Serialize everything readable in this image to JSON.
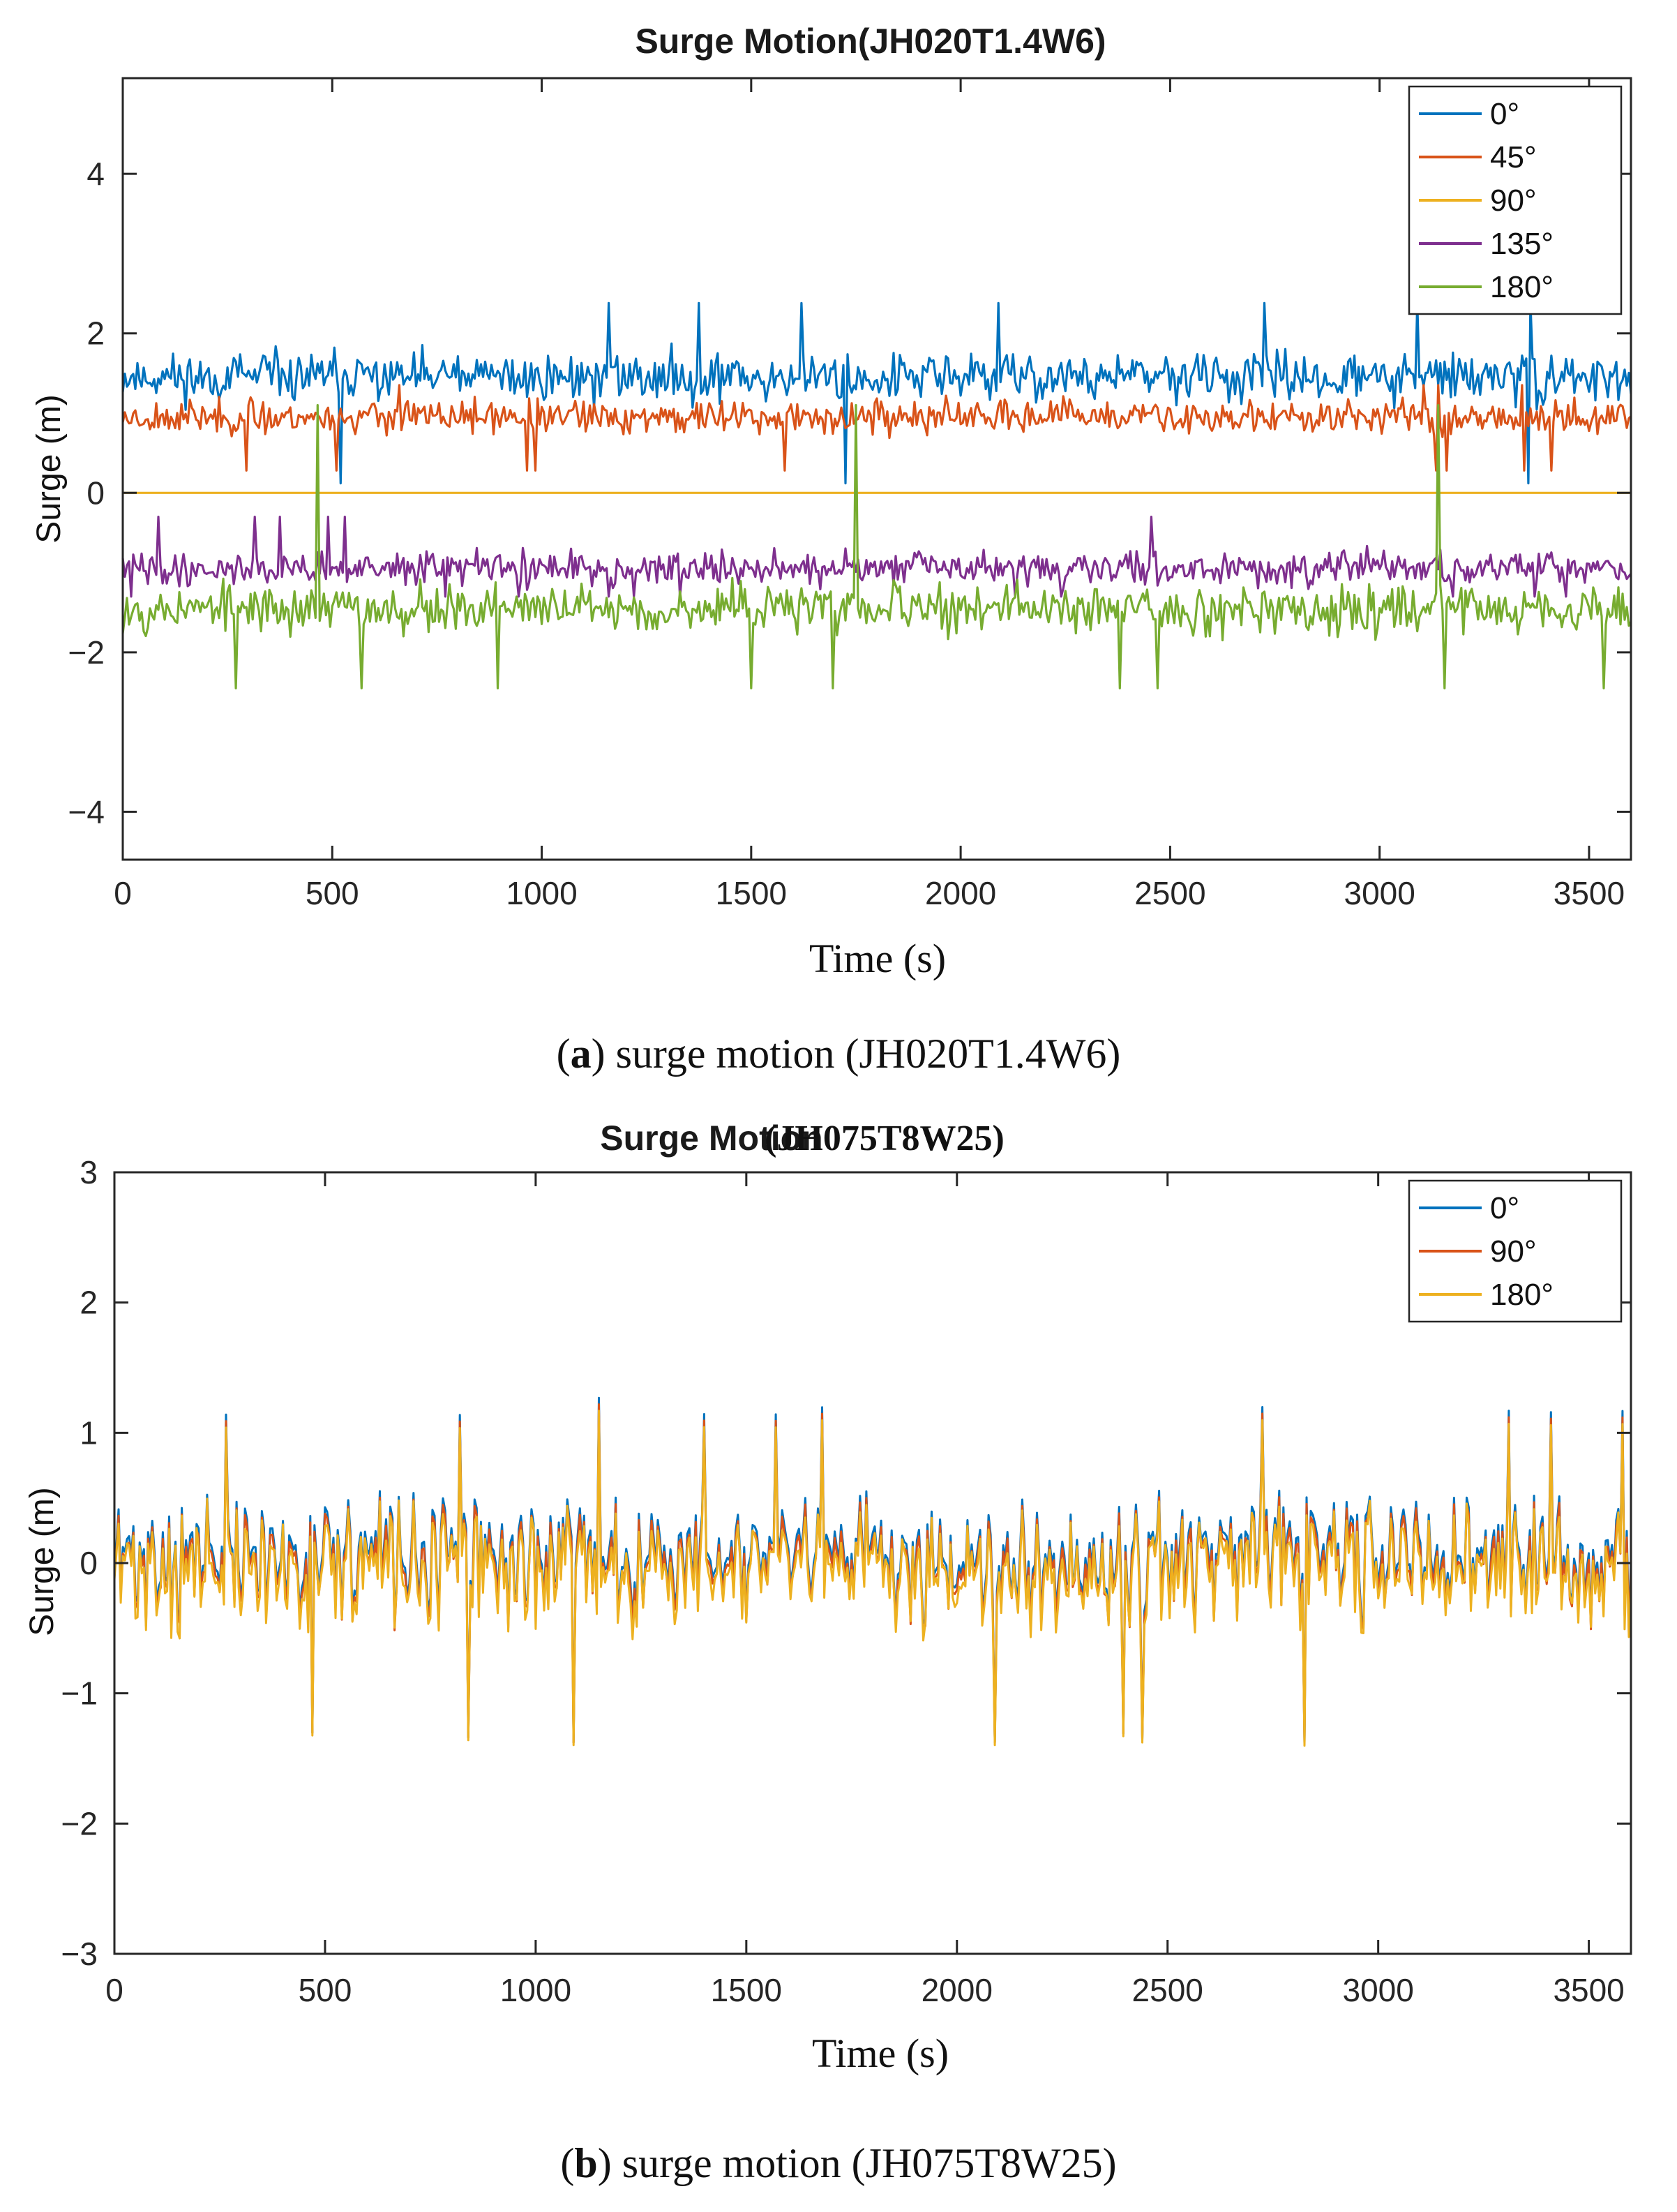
{
  "chart_data": [
    {
      "type": "line",
      "title": "Surge Motion(JH020T1.4W6)",
      "xlabel": "Time (s)",
      "ylabel": "Surge (m)",
      "xlim": [
        0,
        3600
      ],
      "ylim": [
        -4.6,
        5.2
      ],
      "xticks": [
        0,
        500,
        1000,
        1500,
        2000,
        2500,
        3000,
        3500
      ],
      "yticks": [
        -4,
        -2,
        0,
        2,
        4
      ],
      "xtick_labels": [
        "0",
        "500",
        "1000",
        "1500",
        "2000",
        "2500",
        "3000",
        "3500"
      ],
      "ytick_labels": [
        "−4",
        "−2",
        "0",
        "2",
        "4"
      ],
      "legend_location": "top-right",
      "caption_letter": "a",
      "caption_text": ") surge motion (JH020T1.4W6)",
      "caption_open": "(",
      "series": [
        {
          "name": "0°",
          "color": "#0072BD",
          "mean": 1.45,
          "amplitude": 0.32,
          "peak_max": 2.38,
          "peak_min": 0.12,
          "seed": 11
        },
        {
          "name": "45°",
          "color": "#D95319",
          "mean": 0.95,
          "amplitude": 0.22,
          "peak_max": 1.35,
          "peak_min": 0.28,
          "seed": 23
        },
        {
          "name": "90°",
          "color": "#EDB120",
          "mean": 0.0,
          "amplitude": 0.0,
          "peak_max": 0.0,
          "peak_min": 0.0,
          "seed": 37
        },
        {
          "name": "135°",
          "color": "#7E2F8E",
          "mean": -0.95,
          "amplitude": 0.22,
          "peak_max": -0.3,
          "peak_min": -1.3,
          "seed": 41
        },
        {
          "name": "180°",
          "color": "#77AC30",
          "mean": -1.45,
          "amplitude": 0.32,
          "peak_max": 1.1,
          "peak_min": -2.45,
          "seed": 53
        }
      ]
    },
    {
      "type": "line",
      "title": "Surge Motion",
      "title_suffix": "(JH075T8W25)",
      "xlabel": "Time (s)",
      "ylabel": "Surge (m)",
      "xlim": [
        0,
        3600
      ],
      "ylim": [
        -3,
        3
      ],
      "xticks": [
        0,
        500,
        1000,
        1500,
        2000,
        2500,
        3000,
        3500
      ],
      "yticks": [
        -3,
        -2,
        -1,
        0,
        1,
        2,
        3
      ],
      "xtick_labels": [
        "0",
        "500",
        "1000",
        "1500",
        "2000",
        "2500",
        "3000",
        "3500"
      ],
      "ytick_labels": [
        "−3",
        "−2",
        "−1",
        "0",
        "1",
        "2",
        "3"
      ],
      "legend_location": "top-right",
      "caption_letter": "b",
      "caption_text": ") surge motion (JH075T8W25)",
      "caption_open": "(",
      "series": [
        {
          "name": "0°",
          "color": "#0072BD",
          "mean": 0.05,
          "amplitude": 0.55,
          "peak_max": 1.3,
          "peak_min": -1.5,
          "seed": 71
        },
        {
          "name": "90°",
          "color": "#D95319",
          "mean": 0.0,
          "amplitude": 0.55,
          "peak_max": 1.25,
          "peak_min": -1.5,
          "seed": 71
        },
        {
          "name": "180°",
          "color": "#EDB120",
          "mean": -0.05,
          "amplitude": 0.55,
          "peak_max": 1.2,
          "peak_min": -1.52,
          "seed": 71
        }
      ]
    }
  ]
}
